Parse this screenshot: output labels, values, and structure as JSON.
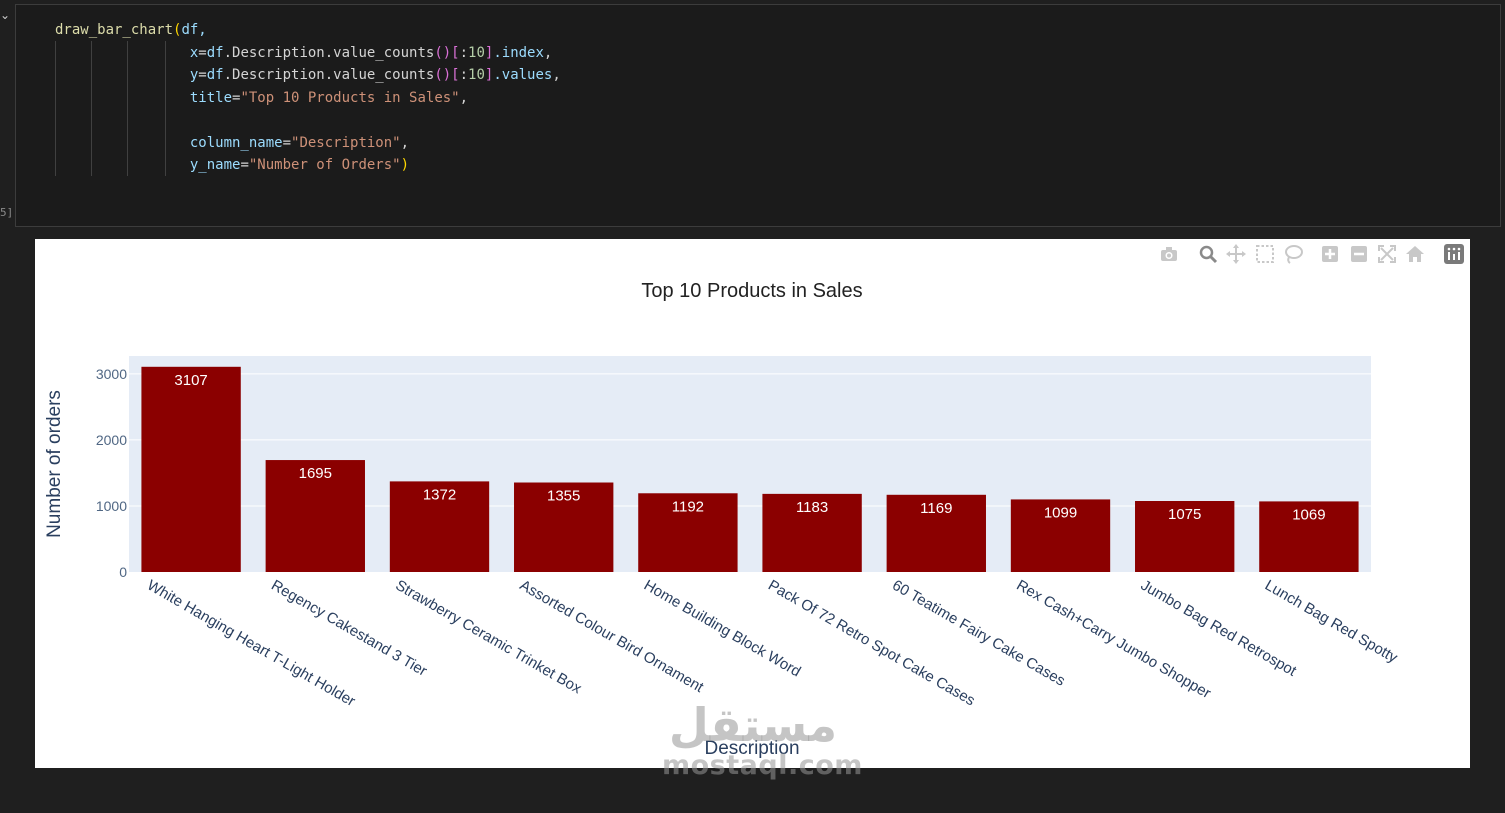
{
  "notebook": {
    "collapse_icon": "chevron-down-icon",
    "execution_count": "5]"
  },
  "code": {
    "lines": [
      [
        {
          "t": "draw_bar_chart",
          "c": "fn"
        },
        {
          "t": "(",
          "c": "paren"
        },
        {
          "t": "df,",
          "c": "var"
        }
      ],
      [
        {
          "t": "                x",
          "c": "param"
        },
        {
          "t": "=",
          "c": "plain"
        },
        {
          "t": "df",
          "c": "var"
        },
        {
          "t": ".Description.value_counts",
          "c": "plain"
        },
        {
          "t": "()",
          "c": "paren2"
        },
        {
          "t": "[",
          "c": "paren2"
        },
        {
          "t": ":",
          "c": "plain"
        },
        {
          "t": "10",
          "c": "num"
        },
        {
          "t": "]",
          "c": "paren2"
        },
        {
          "t": ".index",
          "c": "param"
        },
        {
          "t": ",",
          "c": "plain"
        }
      ],
      [
        {
          "t": "                y",
          "c": "param"
        },
        {
          "t": "=",
          "c": "plain"
        },
        {
          "t": "df",
          "c": "var"
        },
        {
          "t": ".Description.value_counts",
          "c": "plain"
        },
        {
          "t": "()",
          "c": "paren2"
        },
        {
          "t": "[",
          "c": "paren2"
        },
        {
          "t": ":",
          "c": "plain"
        },
        {
          "t": "10",
          "c": "num"
        },
        {
          "t": "]",
          "c": "paren2"
        },
        {
          "t": ".values",
          "c": "param"
        },
        {
          "t": ",",
          "c": "plain"
        }
      ],
      [
        {
          "t": "                title",
          "c": "param"
        },
        {
          "t": "=",
          "c": "plain"
        },
        {
          "t": "\"Top 10 Products in Sales\"",
          "c": "str"
        },
        {
          "t": ",",
          "c": "plain"
        }
      ],
      [],
      [
        {
          "t": "                column_name",
          "c": "param"
        },
        {
          "t": "=",
          "c": "plain"
        },
        {
          "t": "\"Description\"",
          "c": "str"
        },
        {
          "t": ",",
          "c": "plain"
        }
      ],
      [
        {
          "t": "                y_name",
          "c": "param"
        },
        {
          "t": "=",
          "c": "plain"
        },
        {
          "t": "\"Number of Orders\"",
          "c": "str"
        },
        {
          "t": ")",
          "c": "paren"
        }
      ]
    ]
  },
  "modebar": {
    "icons": [
      "camera-icon",
      "zoom-icon",
      "pan-icon",
      "box-select-icon",
      "lasso-select-icon",
      "zoom-in-icon",
      "zoom-out-icon",
      "autoscale-icon",
      "reset-axes-icon",
      "plotly-logo-icon"
    ]
  },
  "chart_data": {
    "type": "bar",
    "title": "Top 10 Products in Sales",
    "xlabel": "Description",
    "ylabel": "Number of orders",
    "categories": [
      "White Hanging Heart T-Light Holder",
      "Regency Cakestand 3 Tier",
      "Strawberry Ceramic Trinket Box",
      "Assorted Colour Bird Ornament",
      "Home Building Block Word",
      "Pack Of 72 Retro Spot Cake Cases",
      "60 Teatime Fairy Cake Cases",
      "Rex Cash+Carry Jumbo Shopper",
      "Jumbo Bag Red Retrospot",
      "Lunch Bag Red Spotty"
    ],
    "values": [
      3107,
      1695,
      1372,
      1355,
      1192,
      1183,
      1169,
      1099,
      1075,
      1069
    ],
    "data_labels": [
      "3107",
      "1695",
      "1372",
      "1355",
      "1192",
      "1183",
      "1169",
      "1099",
      "1075",
      "1069"
    ],
    "yticks": [
      0,
      1000,
      2000,
      3000
    ],
    "ytick_labels": [
      "0",
      "1000",
      "2000",
      "3000"
    ],
    "ylim": [
      0,
      3270.5
    ],
    "bar_color": "#8b0000",
    "plot_bg": "#e5ecf6",
    "grid": true,
    "legend": false
  },
  "watermark": {
    "arabic": "مستقل",
    "latin": "mostaql.com"
  }
}
